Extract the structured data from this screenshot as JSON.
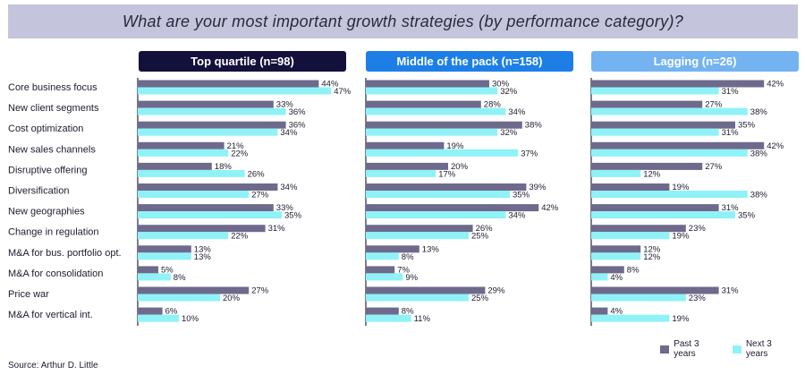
{
  "title": "What are your most important growth strategies (by performance category)?",
  "source": "Source: Arthur D. Little",
  "colors": {
    "past": "#6e6a8c",
    "next": "#8ff2f7",
    "axis": "#2a2a3c"
  },
  "legend": {
    "past": "Past 3 years",
    "next": "Next 3 years"
  },
  "chart_data": {
    "type": "bar",
    "orientation": "horizontal",
    "title": "What are your most important growth strategies (by performance category)?",
    "categories": [
      "Core business focus",
      "New client segments",
      "Cost optimization",
      "New sales channels",
      "Disruptive offering",
      "Diversification",
      "New geographies",
      "Change in regulation",
      "M&A for bus. portfolio opt.",
      "M&A for consolidation",
      "Price war",
      "M&A for vertical int."
    ],
    "series_names": [
      "Past 3 years",
      "Next 3 years"
    ],
    "panels": [
      {
        "name": "Top quartile (n=98)",
        "color": "#14103c",
        "past": [
          44,
          33,
          36,
          21,
          18,
          34,
          33,
          31,
          13,
          5,
          27,
          6
        ],
        "next": [
          47,
          36,
          34,
          22,
          26,
          27,
          35,
          22,
          13,
          8,
          20,
          10
        ]
      },
      {
        "name": "Middle of the pack (n=158)",
        "color": "#1d7fe6",
        "past": [
          30,
          28,
          38,
          19,
          20,
          39,
          42,
          26,
          13,
          7,
          29,
          8
        ],
        "next": [
          32,
          34,
          32,
          37,
          17,
          35,
          34,
          25,
          8,
          9,
          25,
          11
        ]
      },
      {
        "name": "Lagging (n=26)",
        "color": "#74b3f2",
        "past": [
          42,
          27,
          35,
          42,
          27,
          19,
          31,
          23,
          12,
          8,
          31,
          4
        ],
        "next": [
          31,
          38,
          31,
          38,
          12,
          38,
          35,
          19,
          12,
          4,
          23,
          19
        ]
      }
    ],
    "unit": "%"
  }
}
